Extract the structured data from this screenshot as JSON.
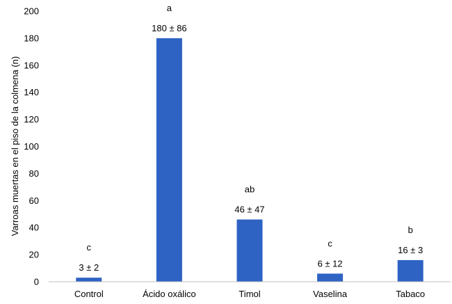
{
  "chart_data": {
    "type": "bar",
    "title": "",
    "xlabel": "",
    "ylabel": "Varroas muertas en el piso de la colmena (n)",
    "ylim": [
      0,
      200
    ],
    "ytick_step": 20,
    "grid": false,
    "categories": [
      "Control",
      "Ácido oxálico",
      "Timol",
      "Vaselina",
      "Tabaco"
    ],
    "values": [
      3,
      180,
      46,
      6,
      16
    ],
    "value_labels": [
      "3 ± 2",
      "180 ± 86",
      "46 ± 47",
      "6 ± 12",
      "16 ± 3"
    ],
    "letters": [
      "c",
      "a",
      "ab",
      "c",
      "b"
    ],
    "bar_color": "#2e63c4"
  }
}
